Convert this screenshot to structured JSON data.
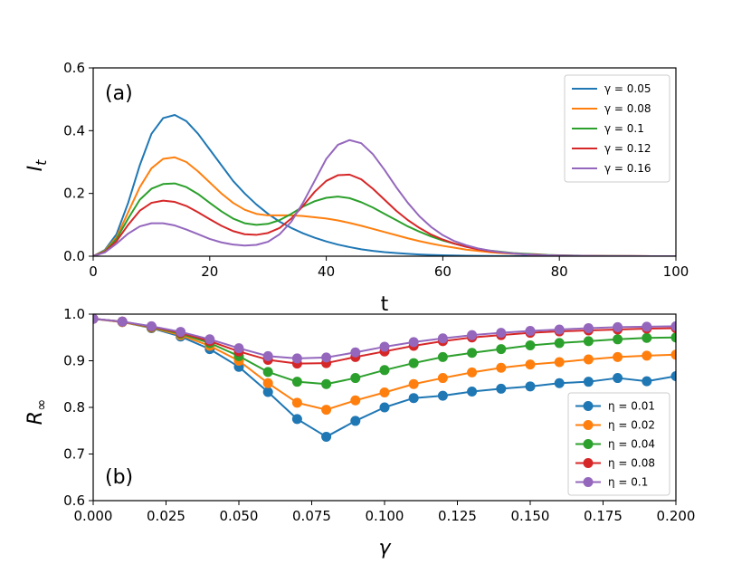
{
  "chart_data": [
    {
      "type": "line",
      "panel_label": "(a)",
      "title": "",
      "xlabel": "t",
      "ylabel": "I",
      "ylabel_sub": "t",
      "xlim": [
        0,
        100
      ],
      "ylim": [
        0,
        0.6
      ],
      "xticks": [
        0,
        20,
        40,
        60,
        80,
        100
      ],
      "yticks": [
        0.0,
        0.2,
        0.4,
        0.6
      ],
      "xtick_labels": [
        "0",
        "20",
        "40",
        "60",
        "80",
        "100"
      ],
      "ytick_labels": [
        "0.0",
        "0.2",
        "0.4",
        "0.6"
      ],
      "legend_position": "upper-right",
      "series": [
        {
          "name": "γ = 0.05",
          "color": "#1f77b4",
          "x": [
            0,
            2,
            4,
            6,
            8,
            10,
            12,
            14,
            16,
            18,
            20,
            22,
            24,
            26,
            28,
            30,
            32,
            34,
            36,
            38,
            40,
            42,
            44,
            46,
            48,
            50,
            52,
            54,
            56,
            58,
            60,
            62,
            64,
            66,
            68,
            70,
            72,
            74,
            76,
            78,
            80,
            84,
            88,
            92,
            96,
            100
          ],
          "y": [
            0,
            0.02,
            0.07,
            0.17,
            0.29,
            0.39,
            0.44,
            0.45,
            0.43,
            0.39,
            0.34,
            0.29,
            0.24,
            0.2,
            0.165,
            0.135,
            0.11,
            0.09,
            0.073,
            0.059,
            0.047,
            0.037,
            0.029,
            0.022,
            0.017,
            0.013,
            0.01,
            0.0075,
            0.0055,
            0.004,
            0.003,
            0.002,
            0.0015,
            0.001,
            0.0007,
            0.0005,
            0.0003,
            0.0002,
            0.0001,
            0.0001,
            0,
            0,
            0,
            0,
            0,
            0
          ]
        },
        {
          "name": "γ = 0.08",
          "color": "#ff7f0e",
          "x": [
            0,
            2,
            4,
            6,
            8,
            10,
            12,
            14,
            16,
            18,
            20,
            22,
            24,
            26,
            28,
            30,
            32,
            34,
            36,
            38,
            40,
            42,
            44,
            46,
            48,
            50,
            52,
            54,
            56,
            58,
            60,
            62,
            64,
            66,
            68,
            70,
            72,
            74,
            76,
            78,
            80,
            84,
            88,
            92,
            96,
            100
          ],
          "y": [
            0,
            0.018,
            0.06,
            0.14,
            0.22,
            0.28,
            0.31,
            0.315,
            0.3,
            0.27,
            0.235,
            0.2,
            0.17,
            0.148,
            0.135,
            0.13,
            0.13,
            0.13,
            0.128,
            0.124,
            0.12,
            0.114,
            0.106,
            0.097,
            0.087,
            0.077,
            0.067,
            0.057,
            0.048,
            0.04,
            0.033,
            0.027,
            0.021,
            0.017,
            0.013,
            0.01,
            0.008,
            0.006,
            0.004,
            0.003,
            0.002,
            0.001,
            0.0005,
            0.0002,
            0.0001,
            0
          ]
        },
        {
          "name": "γ = 0.1",
          "color": "#2ca02c",
          "x": [
            0,
            2,
            4,
            6,
            8,
            10,
            12,
            14,
            16,
            18,
            20,
            22,
            24,
            26,
            28,
            30,
            32,
            34,
            36,
            38,
            40,
            42,
            44,
            46,
            48,
            50,
            52,
            54,
            56,
            58,
            60,
            62,
            64,
            66,
            68,
            70,
            72,
            74,
            76,
            78,
            80,
            84,
            88,
            92,
            96,
            100
          ],
          "y": [
            0,
            0.016,
            0.055,
            0.12,
            0.18,
            0.215,
            0.23,
            0.232,
            0.22,
            0.198,
            0.17,
            0.143,
            0.12,
            0.105,
            0.1,
            0.103,
            0.115,
            0.135,
            0.158,
            0.175,
            0.186,
            0.19,
            0.185,
            0.172,
            0.155,
            0.135,
            0.115,
            0.095,
            0.078,
            0.063,
            0.05,
            0.04,
            0.031,
            0.024,
            0.018,
            0.014,
            0.01,
            0.008,
            0.006,
            0.004,
            0.003,
            0.0015,
            0.0007,
            0.0003,
            0.0001,
            0
          ]
        },
        {
          "name": "γ = 0.12",
          "color": "#d62728",
          "x": [
            0,
            2,
            4,
            6,
            8,
            10,
            12,
            14,
            16,
            18,
            20,
            22,
            24,
            26,
            28,
            30,
            32,
            34,
            36,
            38,
            40,
            42,
            44,
            46,
            48,
            50,
            52,
            54,
            56,
            58,
            60,
            62,
            64,
            66,
            68,
            70,
            72,
            74,
            76,
            78,
            80,
            84,
            88,
            92,
            96,
            100
          ],
          "y": [
            0,
            0.014,
            0.048,
            0.1,
            0.145,
            0.17,
            0.177,
            0.173,
            0.16,
            0.14,
            0.118,
            0.097,
            0.08,
            0.07,
            0.068,
            0.074,
            0.09,
            0.12,
            0.16,
            0.205,
            0.24,
            0.258,
            0.26,
            0.245,
            0.215,
            0.18,
            0.145,
            0.115,
            0.09,
            0.069,
            0.053,
            0.04,
            0.03,
            0.022,
            0.016,
            0.012,
            0.009,
            0.006,
            0.005,
            0.003,
            0.002,
            0.001,
            0.0005,
            0.0002,
            0.0001,
            0
          ]
        },
        {
          "name": "γ = 0.16",
          "color": "#9467bd",
          "x": [
            0,
            2,
            4,
            6,
            8,
            10,
            12,
            14,
            16,
            18,
            20,
            22,
            24,
            26,
            28,
            30,
            32,
            34,
            36,
            38,
            40,
            42,
            44,
            46,
            48,
            50,
            52,
            54,
            56,
            58,
            60,
            62,
            64,
            66,
            68,
            70,
            72,
            74,
            76,
            78,
            80,
            84,
            88,
            92,
            96,
            100
          ],
          "y": [
            0,
            0.012,
            0.04,
            0.072,
            0.095,
            0.105,
            0.105,
            0.098,
            0.085,
            0.07,
            0.055,
            0.044,
            0.037,
            0.034,
            0.036,
            0.046,
            0.07,
            0.11,
            0.17,
            0.24,
            0.31,
            0.355,
            0.37,
            0.36,
            0.325,
            0.275,
            0.22,
            0.17,
            0.127,
            0.093,
            0.067,
            0.048,
            0.035,
            0.025,
            0.018,
            0.013,
            0.009,
            0.006,
            0.004,
            0.003,
            0.002,
            0.001,
            0.0005,
            0.0002,
            0.0001,
            0
          ]
        }
      ]
    },
    {
      "type": "line",
      "panel_label": "(b)",
      "title": "",
      "xlabel": "γ",
      "ylabel": "R",
      "ylabel_sub": "∞",
      "xlim": [
        0,
        0.2
      ],
      "ylim": [
        0.6,
        1.0
      ],
      "xticks": [
        0,
        0.025,
        0.05,
        0.075,
        0.1,
        0.125,
        0.15,
        0.175,
        0.2
      ],
      "yticks": [
        0.6,
        0.7,
        0.8,
        0.9,
        1.0
      ],
      "xtick_labels": [
        "0.000",
        "0.025",
        "0.050",
        "0.075",
        "0.100",
        "0.125",
        "0.150",
        "0.175",
        "0.200"
      ],
      "ytick_labels": [
        "0.6",
        "0.7",
        "0.8",
        "0.9",
        "1.0"
      ],
      "legend_position": "lower-right",
      "markers": "circle",
      "series": [
        {
          "name": "η = 0.01",
          "color": "#1f77b4",
          "x": [
            0,
            0.01,
            0.02,
            0.03,
            0.04,
            0.05,
            0.06,
            0.07,
            0.08,
            0.09,
            0.1,
            0.11,
            0.12,
            0.13,
            0.14,
            0.15,
            0.16,
            0.17,
            0.18,
            0.19,
            0.2
          ],
          "y": [
            0.99,
            0.983,
            0.97,
            0.952,
            0.925,
            0.887,
            0.833,
            0.775,
            0.737,
            0.771,
            0.8,
            0.82,
            0.825,
            0.834,
            0.84,
            0.845,
            0.852,
            0.855,
            0.863,
            0.856,
            0.867
          ]
        },
        {
          "name": "η = 0.02",
          "color": "#ff7f0e",
          "x": [
            0,
            0.01,
            0.02,
            0.03,
            0.04,
            0.05,
            0.06,
            0.07,
            0.08,
            0.09,
            0.1,
            0.11,
            0.12,
            0.13,
            0.14,
            0.15,
            0.16,
            0.17,
            0.18,
            0.19,
            0.2
          ],
          "y": [
            0.99,
            0.983,
            0.971,
            0.955,
            0.932,
            0.9,
            0.852,
            0.81,
            0.795,
            0.815,
            0.832,
            0.85,
            0.863,
            0.875,
            0.885,
            0.892,
            0.897,
            0.903,
            0.908,
            0.911,
            0.913
          ]
        },
        {
          "name": "η = 0.04",
          "color": "#2ca02c",
          "x": [
            0,
            0.01,
            0.02,
            0.03,
            0.04,
            0.05,
            0.06,
            0.07,
            0.08,
            0.09,
            0.1,
            0.11,
            0.12,
            0.13,
            0.14,
            0.15,
            0.16,
            0.17,
            0.18,
            0.19,
            0.2
          ],
          "y": [
            0.99,
            0.984,
            0.972,
            0.958,
            0.938,
            0.91,
            0.876,
            0.855,
            0.85,
            0.863,
            0.88,
            0.895,
            0.908,
            0.917,
            0.925,
            0.933,
            0.938,
            0.942,
            0.946,
            0.949,
            0.95
          ]
        },
        {
          "name": "η = 0.08",
          "color": "#d62728",
          "x": [
            0,
            0.01,
            0.02,
            0.03,
            0.04,
            0.05,
            0.06,
            0.07,
            0.08,
            0.09,
            0.1,
            0.11,
            0.12,
            0.13,
            0.14,
            0.15,
            0.16,
            0.17,
            0.18,
            0.19,
            0.2
          ],
          "y": [
            0.99,
            0.984,
            0.973,
            0.96,
            0.942,
            0.92,
            0.902,
            0.894,
            0.895,
            0.908,
            0.92,
            0.932,
            0.942,
            0.95,
            0.955,
            0.96,
            0.963,
            0.965,
            0.967,
            0.969,
            0.97
          ]
        },
        {
          "name": "η = 0.1",
          "color": "#9467bd",
          "x": [
            0,
            0.01,
            0.02,
            0.03,
            0.04,
            0.05,
            0.06,
            0.07,
            0.08,
            0.09,
            0.1,
            0.11,
            0.12,
            0.13,
            0.14,
            0.15,
            0.16,
            0.17,
            0.18,
            0.19,
            0.2
          ],
          "y": [
            0.99,
            0.984,
            0.974,
            0.962,
            0.946,
            0.927,
            0.91,
            0.905,
            0.907,
            0.918,
            0.93,
            0.94,
            0.948,
            0.955,
            0.96,
            0.964,
            0.967,
            0.97,
            0.972,
            0.973,
            0.974
          ]
        }
      ]
    }
  ]
}
